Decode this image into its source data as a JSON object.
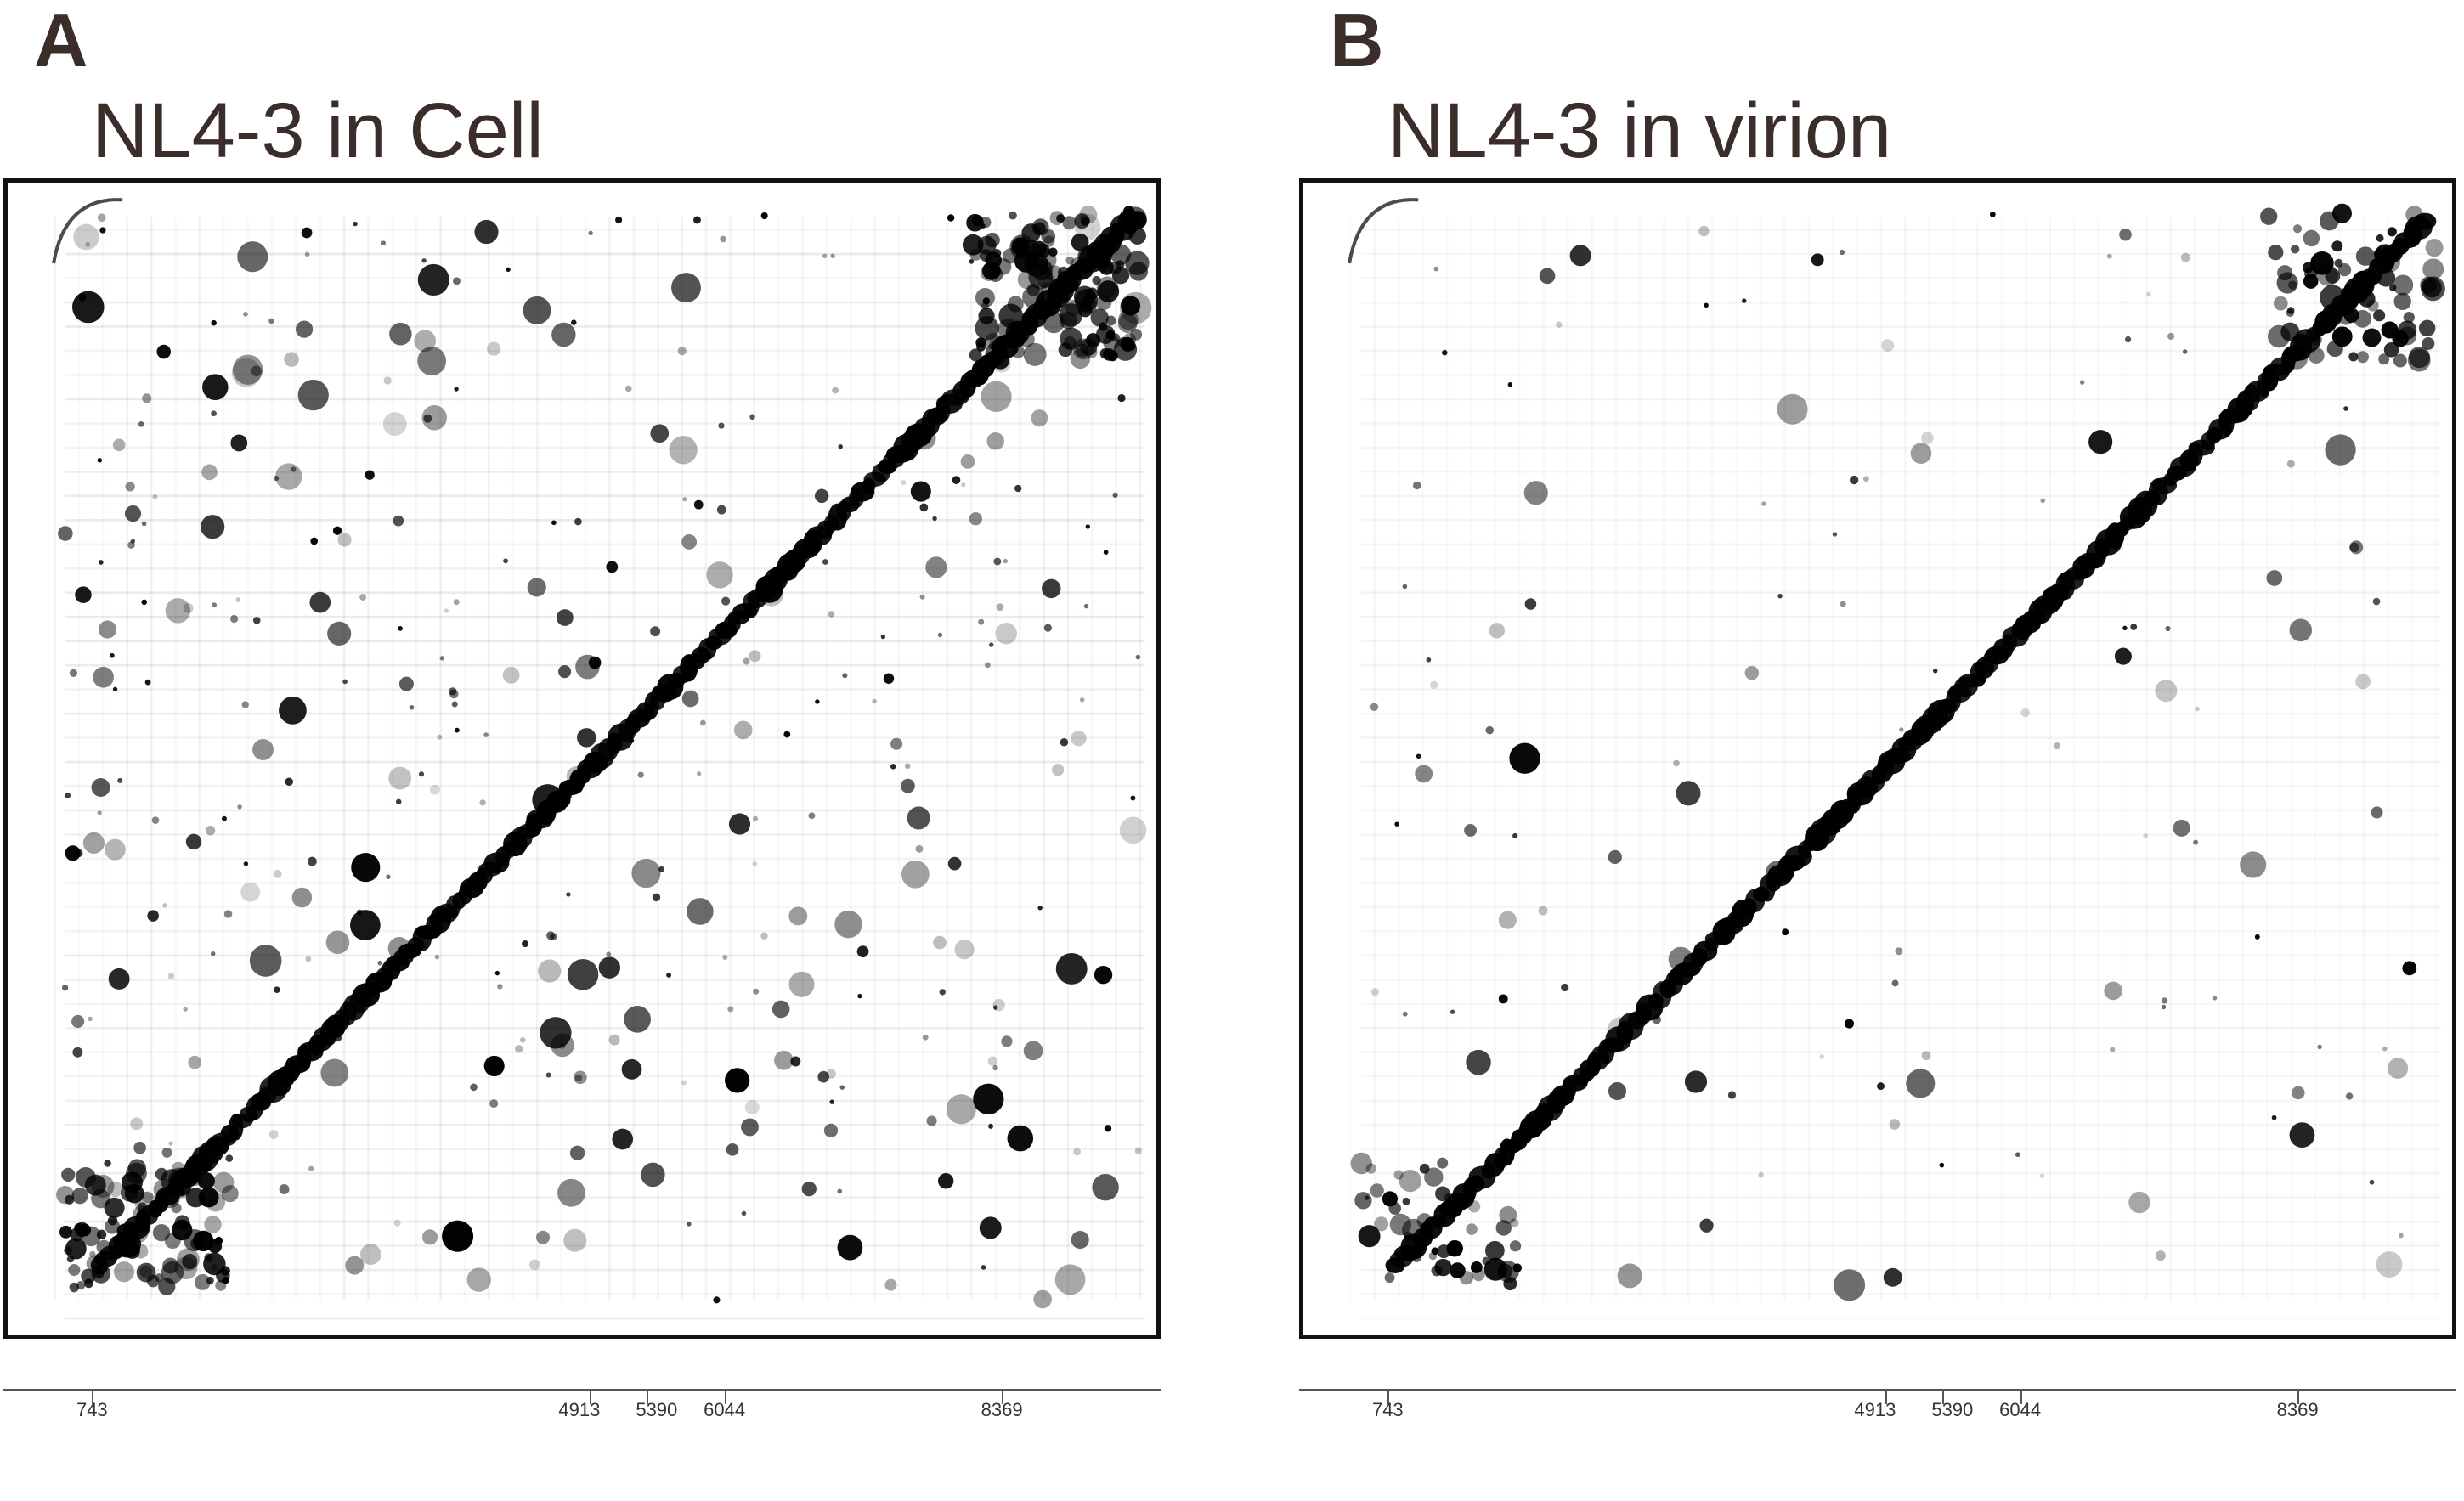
{
  "panels": [
    {
      "letter": "A",
      "title": "NL4-3 in Cell",
      "ticks": [
        {
          "label": "743",
          "pos": 743
        },
        {
          "label": "4913",
          "pos": 4913
        },
        {
          "label": "5390",
          "pos": 5390
        },
        {
          "label": "6044",
          "pos": 6044
        },
        {
          "label": "8369",
          "pos": 8369
        }
      ]
    },
    {
      "letter": "B",
      "title": "NL4-3 in virion",
      "ticks": [
        {
          "label": "743",
          "pos": 743
        },
        {
          "label": "4913",
          "pos": 4913
        },
        {
          "label": "5390",
          "pos": 5390
        },
        {
          "label": "6044",
          "pos": 6044
        },
        {
          "label": "8369",
          "pos": 8369
        }
      ]
    }
  ],
  "colors": {
    "text": "#3b2e2a",
    "frame": "#111111",
    "ink": "#000000"
  }
}
